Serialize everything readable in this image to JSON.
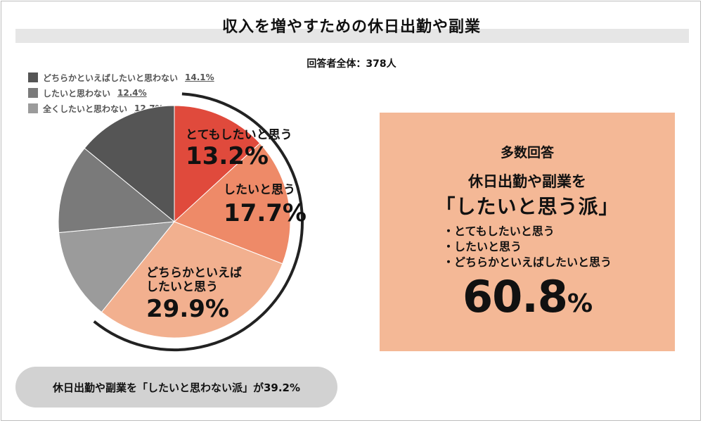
{
  "title": "収入を増やすための休日出勤や副業",
  "total_label": "回答者全体：378人",
  "colors": {
    "slice_strong_yes": "#e04a3c",
    "slice_yes": "#ee8a68",
    "slice_somewhat_yes": "#f2b08f",
    "slice_somewhat_no": "#555555",
    "slice_no": "#7a7a7a",
    "slice_not_at_all": "#9b9b9b",
    "highlight_box": "#f4b896",
    "pill": "#d2d2d2"
  },
  "legend": [
    {
      "label": "どちらかといえばしたいと思わない",
      "pct": "14.1%",
      "color": "#555555"
    },
    {
      "label": "したいと思わない",
      "pct": "12.4%",
      "color": "#7a7a7a"
    },
    {
      "label": "全くしたいと思わない",
      "pct": "12.7%",
      "color": "#9b9b9b"
    }
  ],
  "slice_labels": {
    "strong_yes": {
      "text": "とてもしたいと思う",
      "pct": "13.2%"
    },
    "yes": {
      "text": "したいと思う",
      "pct": "17.7%"
    },
    "somewhat_yes": {
      "text1": "どちらかといえば",
      "text2": "したいと思う",
      "pct": "29.9%"
    }
  },
  "highlight": {
    "heading": "多数回答",
    "line1": "休日出勤や副業を",
    "line2": "「したいと思う派」",
    "items": [
      "・とてもしたいと思う",
      "・したいと思う",
      "・どちらかといえばしたいと思う"
    ],
    "pct_value": "60.8",
    "pct_unit": "%"
  },
  "bottom_pill": "休日出勤や副業を「したいと思わない派」が39.2%",
  "chart_data": {
    "type": "pie",
    "title": "収入を増やすための休日出勤や副業",
    "subtitle": "回答者全体：378人",
    "start": "12 o'clock, clockwise",
    "categories": [
      "とてもしたいと思う",
      "したいと思う",
      "どちらかといえばしたいと思う",
      "全くしたいと思わない",
      "したいと思わない",
      "どちらかといえばしたいと思わない"
    ],
    "values": [
      13.2,
      17.7,
      29.9,
      12.7,
      12.4,
      14.1
    ],
    "unit": "%",
    "colors": [
      "#e04a3c",
      "#ee8a68",
      "#f2b08f",
      "#9b9b9b",
      "#7a7a7a",
      "#555555"
    ],
    "legend_position": "top-left",
    "groups": [
      {
        "label": "したいと思う派",
        "value": 60.8
      },
      {
        "label": "したいと思わない派",
        "value": 39.2
      }
    ]
  }
}
